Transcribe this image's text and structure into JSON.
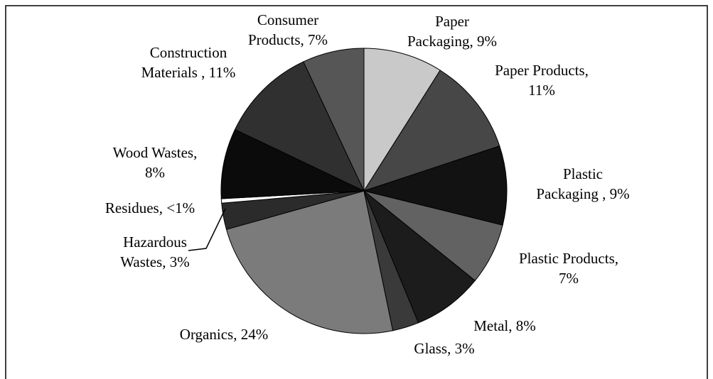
{
  "chart_data": {
    "type": "pie",
    "categories": [
      "Paper Packaging",
      "Paper Products",
      "Plastic Packaging",
      "Plastic Products",
      "Metal",
      "Glass",
      "Organics",
      "Hazardous Wastes",
      "Residues",
      "Wood Wastes",
      "Construction Materials",
      "Consumer Products"
    ],
    "values": [
      9,
      11,
      9,
      7,
      8,
      3,
      24,
      3,
      0.5,
      8,
      11,
      7
    ],
    "value_labels": [
      [
        "Paper",
        "Packaging, 9%"
      ],
      [
        "Paper Products,",
        "11%"
      ],
      [
        "Plastic",
        "Packaging , 9%"
      ],
      [
        "Plastic Products,",
        "7%"
      ],
      [
        "Metal, 8%"
      ],
      [
        "Glass, 3%"
      ],
      [
        "Organics, 24%"
      ],
      [
        "Hazardous",
        "Wastes, 3%"
      ],
      [
        "Residues, <1%"
      ],
      [
        "Wood Wastes,",
        "8%"
      ],
      [
        "Construction",
        "Materials , 11%"
      ],
      [
        "Consumer",
        "Products, 7%"
      ]
    ],
    "colors": [
      "#c9c9c9",
      "#474747",
      "#121212",
      "#626262",
      "#1c1c1c",
      "#3a3a3a",
      "#7b7b7b",
      "#2b2b2b",
      "#ffffff",
      "#0b0b0b",
      "#303030",
      "#565656"
    ]
  }
}
